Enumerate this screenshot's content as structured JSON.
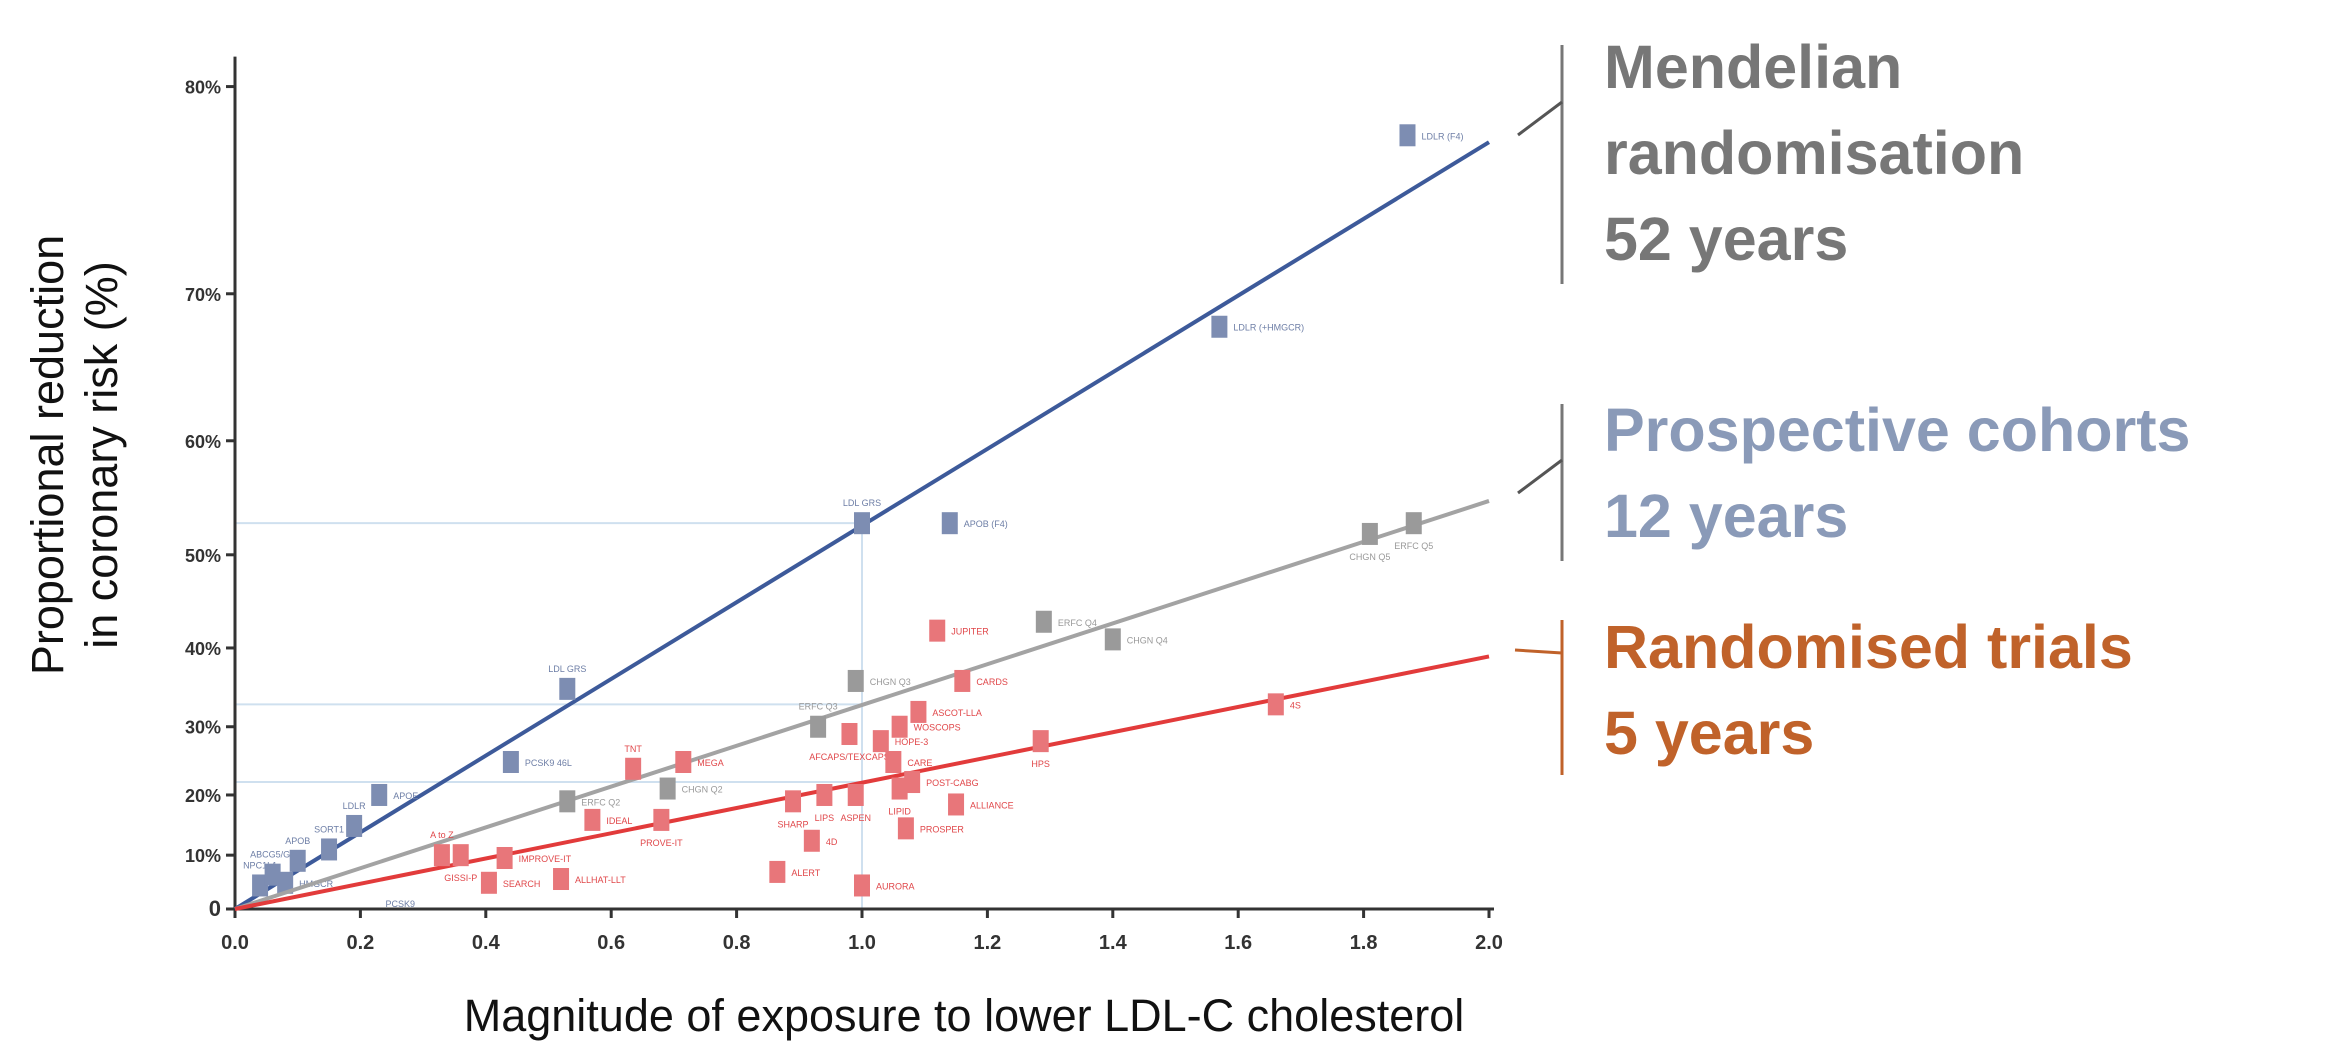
{
  "chart_data": {
    "type": "scatter",
    "title": "",
    "xlabel": "Magnitude of exposure to lower LDL-C cholesterol",
    "ylabel_lines": [
      "Proportional reduction",
      "in coronary risk (%)"
    ],
    "y_scale": "log(1 - risk reduction)",
    "xlim": [
      0.0,
      2.0
    ],
    "ylim": [
      0,
      0.8
    ],
    "x_ticks": [
      "0.0",
      "0.2",
      "0.4",
      "0.6",
      "0.8",
      "1.0",
      "1.2",
      "1.4",
      "1.6",
      "1.8",
      "2.0"
    ],
    "y_ticks": [
      {
        "value": 0,
        "label": "0"
      },
      {
        "value": 0.1,
        "label": "10%"
      },
      {
        "value": 0.2,
        "label": "20%"
      },
      {
        "value": 0.3,
        "label": "30%"
      },
      {
        "value": 0.4,
        "label": "40%"
      },
      {
        "value": 0.5,
        "label": "50%"
      },
      {
        "value": 0.6,
        "label": "60%"
      },
      {
        "value": 0.7,
        "label": "70%"
      },
      {
        "value": 0.8,
        "label": "80%"
      }
    ],
    "reference_lines": {
      "x": 1.0,
      "y_values": [
        0.53,
        0.33,
        0.22
      ]
    },
    "series": [
      {
        "name": "Mendelian randomisation",
        "color": "#3d5a9a",
        "marker_color": "#7d8db2",
        "fit_end": {
          "x": 2.0,
          "y": 0.777
        },
        "points": [
          {
            "label": "NPC1L1",
            "x": 0.04,
            "y": 0.045
          },
          {
            "label": "ABCG5/G8",
            "x": 0.06,
            "y": 0.065
          },
          {
            "label": "HMGCR",
            "x": 0.08,
            "y": 0.05
          },
          {
            "label": "APOB",
            "x": 0.1,
            "y": 0.09
          },
          {
            "label": "SORT1",
            "x": 0.15,
            "y": 0.11
          },
          {
            "label": "LDLR",
            "x": 0.19,
            "y": 0.15
          },
          {
            "label": "APOE",
            "x": 0.23,
            "y": 0.2
          },
          {
            "label": "PCSK9 46L",
            "x": 0.44,
            "y": 0.25
          },
          {
            "label": "LDL GRS",
            "x": 0.53,
            "y": 0.35
          },
          {
            "label": "LDL GRS",
            "x": 1.0,
            "y": 0.53
          },
          {
            "label": "APOB (F4)",
            "x": 1.14,
            "y": 0.53
          },
          {
            "label": "LDLR (+HMGCR)",
            "x": 1.57,
            "y": 0.68
          },
          {
            "label": "LDLR (F4)",
            "x": 1.87,
            "y": 0.78
          }
        ],
        "extra_labels": [
          {
            "label": "PCSK9",
            "x": 0.24,
            "y": 0.012
          }
        ]
      },
      {
        "name": "Prospective cohorts",
        "color": "#a3a3a3",
        "marker_color": "#9a9a9a",
        "fit_end": {
          "x": 2.0,
          "y": 0.55
        },
        "points": [
          {
            "label": "ERFC Q2",
            "x": 0.53,
            "y": 0.19
          },
          {
            "label": "CHGN Q2",
            "x": 0.69,
            "y": 0.21
          },
          {
            "label": "ERFC Q3",
            "x": 0.93,
            "y": 0.3
          },
          {
            "label": "CHGN Q3",
            "x": 0.99,
            "y": 0.36
          },
          {
            "label": "ERFC Q4",
            "x": 1.29,
            "y": 0.43
          },
          {
            "label": "CHGN Q4",
            "x": 1.4,
            "y": 0.41
          },
          {
            "label": "CHGN Q5",
            "x": 1.81,
            "y": 0.52
          },
          {
            "label": "ERFC Q5",
            "x": 1.88,
            "y": 0.53
          }
        ]
      },
      {
        "name": "Randomised trials",
        "color": "#e23b3b",
        "marker_color": "#e8767a",
        "fit_end": {
          "x": 2.0,
          "y": 0.39
        },
        "points": [
          {
            "label": "A to Z",
            "x": 0.33,
            "y": 0.1
          },
          {
            "label": "GISSI-P",
            "x": 0.36,
            "y": 0.1
          },
          {
            "label": "SEARCH",
            "x": 0.405,
            "y": 0.05
          },
          {
            "label": "IMPROVE-IT",
            "x": 0.43,
            "y": 0.095
          },
          {
            "label": "ALLHAT-LLT",
            "x": 0.52,
            "y": 0.057
          },
          {
            "label": "IDEAL",
            "x": 0.57,
            "y": 0.16
          },
          {
            "label": "TNT",
            "x": 0.635,
            "y": 0.24
          },
          {
            "label": "PROVE-IT",
            "x": 0.68,
            "y": 0.16
          },
          {
            "label": "MEGA",
            "x": 0.715,
            "y": 0.25
          },
          {
            "label": "ALERT",
            "x": 0.865,
            "y": 0.07
          },
          {
            "label": "SHARP",
            "x": 0.89,
            "y": 0.19
          },
          {
            "label": "4D",
            "x": 0.92,
            "y": 0.125
          },
          {
            "label": "LIPS",
            "x": 0.94,
            "y": 0.2
          },
          {
            "label": "AFCAPS/TEXCAPS",
            "x": 0.98,
            "y": 0.29
          },
          {
            "label": "ASPEN",
            "x": 0.99,
            "y": 0.2
          },
          {
            "label": "AURORA",
            "x": 1.0,
            "y": 0.045
          },
          {
            "label": "HOPE-3",
            "x": 1.03,
            "y": 0.28
          },
          {
            "label": "CARE",
            "x": 1.05,
            "y": 0.25
          },
          {
            "label": "LIPID",
            "x": 1.06,
            "y": 0.21
          },
          {
            "label": "WOSCOPS",
            "x": 1.06,
            "y": 0.3
          },
          {
            "label": "PROSPER",
            "x": 1.07,
            "y": 0.146
          },
          {
            "label": "POST-CABG",
            "x": 1.08,
            "y": 0.22
          },
          {
            "label": "ASCOT-LLA",
            "x": 1.09,
            "y": 0.32
          },
          {
            "label": "JUPITER",
            "x": 1.12,
            "y": 0.42
          },
          {
            "label": "ALLIANCE",
            "x": 1.15,
            "y": 0.185
          },
          {
            "label": "CARDS",
            "x": 1.16,
            "y": 0.36
          },
          {
            "label": "HPS",
            "x": 1.285,
            "y": 0.28
          },
          {
            "label": "4S",
            "x": 1.66,
            "y": 0.33
          }
        ]
      }
    ],
    "annotations": [
      {
        "lines": [
          "Mendelian",
          "randomisation",
          "52 years"
        ],
        "color": "#777777"
      },
      {
        "lines": [
          "Prospective cohorts",
          "12 years"
        ],
        "color": "#8a9ab8"
      },
      {
        "lines": [
          "Randomised trials",
          "5 years"
        ],
        "color": "#c0622a"
      }
    ]
  }
}
